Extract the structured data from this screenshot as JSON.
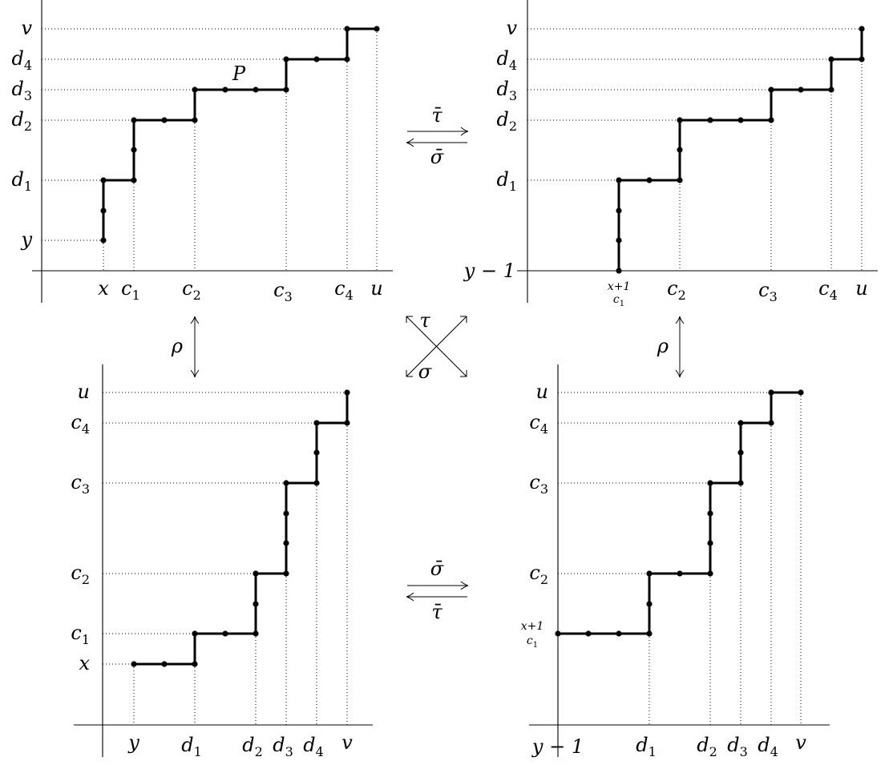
{
  "panels": [
    {
      "id": "top-left",
      "path_label": "P",
      "x_labels": [
        {
          "main": "x",
          "sub": ""
        },
        {
          "main": "c",
          "sub": "1"
        },
        {
          "main": "c",
          "sub": "2"
        },
        {
          "main": "c",
          "sub": "3"
        },
        {
          "main": "c",
          "sub": "4"
        },
        {
          "main": "u",
          "sub": ""
        }
      ],
      "y_labels": [
        {
          "main": "y",
          "sub": ""
        },
        {
          "main": "d",
          "sub": "1"
        },
        {
          "main": "d",
          "sub": "2"
        },
        {
          "main": "d",
          "sub": "3"
        },
        {
          "main": "d",
          "sub": "4"
        },
        {
          "main": "v",
          "sub": ""
        }
      ]
    },
    {
      "id": "top-right",
      "x_labels": [
        {
          "stack_top": "x+1",
          "stack_bottom": "c",
          "stack_sub": "1"
        },
        {
          "main": "c",
          "sub": "2"
        },
        {
          "main": "c",
          "sub": "3"
        },
        {
          "main": "c",
          "sub": "4"
        },
        {
          "main": "u",
          "sub": ""
        }
      ],
      "y_labels": [
        {
          "main": "y − 1",
          "sub": ""
        },
        {
          "main": "d",
          "sub": "1"
        },
        {
          "main": "d",
          "sub": "2"
        },
        {
          "main": "d",
          "sub": "3"
        },
        {
          "main": "d",
          "sub": "4"
        },
        {
          "main": "v",
          "sub": ""
        }
      ]
    },
    {
      "id": "bottom-left",
      "x_labels": [
        {
          "main": "y",
          "sub": ""
        },
        {
          "main": "d",
          "sub": "1"
        },
        {
          "main": "d",
          "sub": "2"
        },
        {
          "main": "d",
          "sub": "3"
        },
        {
          "main": "d",
          "sub": "4"
        },
        {
          "main": "v",
          "sub": ""
        }
      ],
      "y_labels": [
        {
          "main": "x",
          "sub": ""
        },
        {
          "main": "c",
          "sub": "1"
        },
        {
          "main": "c",
          "sub": "2"
        },
        {
          "main": "c",
          "sub": "3"
        },
        {
          "main": "c",
          "sub": "4"
        },
        {
          "main": "u",
          "sub": ""
        }
      ]
    },
    {
      "id": "bottom-right",
      "x_labels": [
        {
          "main": "y − 1",
          "sub": ""
        },
        {
          "main": "d",
          "sub": "1"
        },
        {
          "main": "d",
          "sub": "2"
        },
        {
          "main": "d",
          "sub": "3"
        },
        {
          "main": "d",
          "sub": "4"
        },
        {
          "main": "v",
          "sub": ""
        }
      ],
      "y_labels": [
        {
          "stack_top": "x+1",
          "stack_bottom": "c",
          "stack_sub": "1"
        },
        {
          "main": "c",
          "sub": "2"
        },
        {
          "main": "c",
          "sub": "3"
        },
        {
          "main": "c",
          "sub": "4"
        },
        {
          "main": "u",
          "sub": ""
        }
      ]
    }
  ],
  "maps": {
    "top_right_arrow": "τ̄",
    "top_left_arrow": "σ̄",
    "bottom_right_arrow": "σ̄",
    "bottom_left_arrow": "τ̄",
    "left_vertical": "ρ",
    "right_vertical": "ρ",
    "cross_top": "τ",
    "cross_bottom": "σ"
  }
}
